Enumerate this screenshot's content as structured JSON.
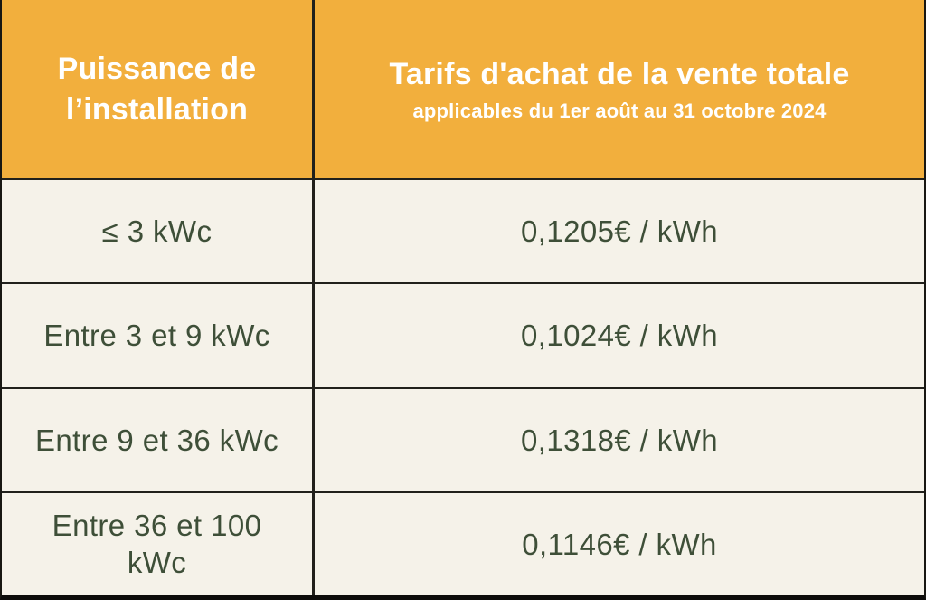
{
  "table": {
    "header": {
      "col1": "Puissance de l’installation",
      "col2_title": "Tarifs d'achat de la vente totale",
      "col2_subtitle": "applicables du 1er août au 31 octobre 2024"
    },
    "rows": [
      {
        "power": "≤ 3 kWc",
        "tariff": "0,1205€ / kWh"
      },
      {
        "power": "Entre 3 et 9 kWc",
        "tariff": "0,1024€ / kWh"
      },
      {
        "power": "Entre 9 et 36 kWc",
        "tariff": "0,1318€ / kWh"
      },
      {
        "power": "Entre 36 et 100 kWc",
        "tariff": "0,1146€ / kWh"
      }
    ],
    "colors": {
      "header_bg": "#F2AF3D",
      "body_bg": "#F5F2E9",
      "grid_line": "#21201b",
      "header_text": "#FFFFFF",
      "body_text": "#3E4F38"
    }
  },
  "chart_data": {
    "type": "table",
    "title": "Tarifs d'achat de la vente totale",
    "subtitle": "applicables du 1er août au 31 octobre 2024",
    "columns": [
      "Puissance de l’installation",
      "Tarifs d'achat de la vente totale (applicables du 1er août au 31 octobre 2024)"
    ],
    "rows": [
      [
        "≤ 3 kWc",
        "0,1205€ / kWh"
      ],
      [
        "Entre 3 et 9 kWc",
        "0,1024€ / kWh"
      ],
      [
        "Entre 9 et 36 kWc",
        "0,1318€ / kWh"
      ],
      [
        "Entre 36 et 100 kWc",
        "0,1146€ / kWh"
      ]
    ],
    "tariff_values_eur_per_kwh": [
      0.1205,
      0.1024,
      0.1318,
      0.1146
    ]
  }
}
